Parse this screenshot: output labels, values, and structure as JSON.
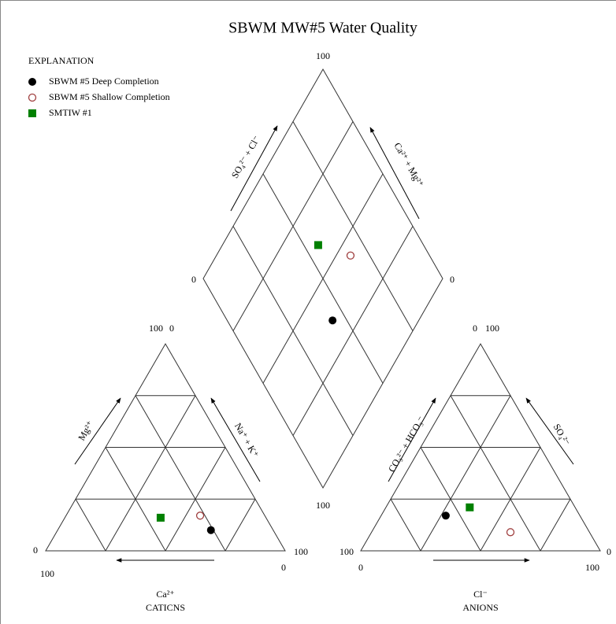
{
  "chart_data": {
    "type": "piper",
    "title": "SBWM MW#5 Water Quality",
    "legend_title": "EXPLANATION",
    "cation_title": "CATICNS",
    "anion_title": "ANIONS",
    "axis_labels": {
      "Mg": "Mg²⁺",
      "NaK": "Na⁺ + K⁺",
      "Ca": "Ca²⁺",
      "CO3_HCO3": "CO₃²⁻ + HCO₃⁻",
      "SO4": "SO₄²⁻",
      "Cl": "Cl⁻",
      "SO4_Cl": "SO₄²⁻ + Cl⁻",
      "Ca_Mg": "Ca²⁺ + Mg²⁺"
    },
    "cation_corner_labels": [
      100,
      0,
      0,
      100,
      100,
      0
    ],
    "anion_corner_labels": [
      0,
      100,
      100,
      0,
      0,
      100
    ],
    "diamond_corner_labels": [
      100,
      0,
      0,
      100
    ],
    "samples": [
      {
        "name": "SBWM #5 Deep Completion",
        "color": "#000000",
        "marker": "filled-circle",
        "cations": {
          "Ca": 26,
          "Mg": 10,
          "NaK": 64
        },
        "anions": {
          "CO3_HCO3": 56,
          "SO4": 17,
          "Cl": 27
        }
      },
      {
        "name": "SBWM #5 Shallow Completion",
        "color": "#a04040",
        "marker": "open-circle",
        "cations": {
          "Ca": 27,
          "Mg": 17,
          "NaK": 56
        },
        "anions": {
          "CO3_HCO3": 33,
          "SO4": 9,
          "Cl": 58
        }
      },
      {
        "name": "SMTIW #1",
        "color": "#008000",
        "marker": "square",
        "cations": {
          "Ca": 44,
          "Mg": 16,
          "NaK": 40
        },
        "anions": {
          "CO3_HCO3": 44,
          "SO4": 21,
          "Cl": 35
        }
      }
    ]
  }
}
